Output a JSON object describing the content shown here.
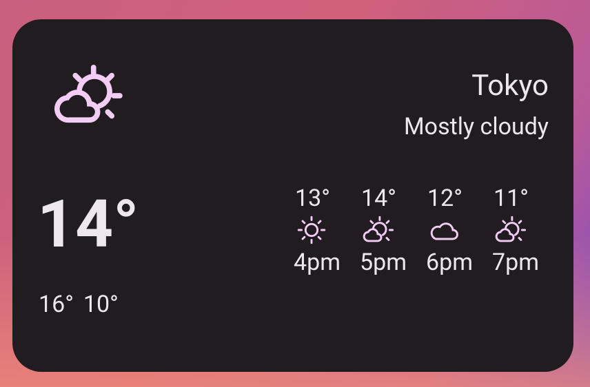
{
  "colors": {
    "card": "#201c1f",
    "icon": "#f4cdf6",
    "text": "#eee7ec"
  },
  "widget": {
    "icon": "partly-cloudy-icon",
    "city": "Tokyo",
    "condition": "Mostly cloudy",
    "current_temp": "14°",
    "high": "16°",
    "low": "10°",
    "hourly": [
      {
        "temp": "13°",
        "icon": "sunny-icon",
        "time": "4pm"
      },
      {
        "temp": "14°",
        "icon": "partly-cloudy-icon",
        "time": "5pm"
      },
      {
        "temp": "12°",
        "icon": "cloudy-icon",
        "time": "6pm"
      },
      {
        "temp": "11°",
        "icon": "partly-cloudy-icon",
        "time": "7pm"
      }
    ]
  }
}
